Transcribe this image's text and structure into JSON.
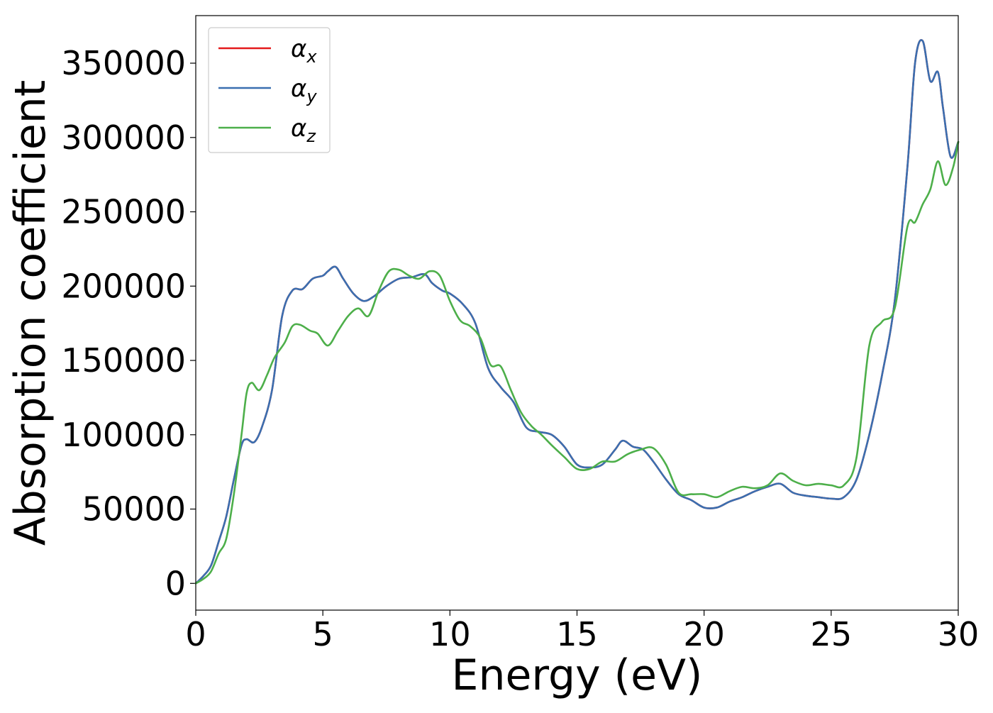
{
  "chart_data": {
    "type": "line",
    "xlabel": "Energy (eV)",
    "ylabel": "Absorption coefficient",
    "xlim": [
      0,
      30
    ],
    "ylim": [
      -18000,
      382000
    ],
    "xticks": [
      0,
      5,
      10,
      15,
      20,
      25,
      30
    ],
    "xtick_labels": [
      "0",
      "5",
      "10",
      "15",
      "20",
      "25",
      "30"
    ],
    "yticks": [
      0,
      50000,
      100000,
      150000,
      200000,
      250000,
      300000,
      350000
    ],
    "ytick_labels": [
      "0",
      "50000",
      "100000",
      "150000",
      "200000",
      "250000",
      "300000",
      "350000"
    ],
    "grid": false,
    "legend_position": "top-left",
    "series": [
      {
        "name": "α_x",
        "legend_symbol": "α",
        "legend_subscript": "x",
        "color": "#e41a1c",
        "x": [
          0,
          0.3,
          0.6,
          0.9,
          1.2,
          1.5,
          1.8,
          2.0,
          2.3,
          2.6,
          3.0,
          3.4,
          3.8,
          4.2,
          4.6,
          5.0,
          5.2,
          5.5,
          5.8,
          6.2,
          6.6,
          7.0,
          7.5,
          8.0,
          8.5,
          9.0,
          9.3,
          9.7,
          10.0,
          10.5,
          11.0,
          11.5,
          12.0,
          12.5,
          13.0,
          13.5,
          14.0,
          14.5,
          15.0,
          15.5,
          16.0,
          16.5,
          16.8,
          17.2,
          17.6,
          18.0,
          18.5,
          19.0,
          19.5,
          20.0,
          20.5,
          21.0,
          21.5,
          22.0,
          22.5,
          23.0,
          23.5,
          24.0,
          24.5,
          25.0,
          25.5,
          26.0,
          26.5,
          27.0,
          27.5,
          28.0,
          28.3,
          28.6,
          28.9,
          29.2,
          29.4,
          29.7,
          30.0
        ],
        "y": [
          0,
          5000,
          12000,
          28000,
          45000,
          70000,
          93000,
          97000,
          95000,
          105000,
          130000,
          180000,
          197000,
          198000,
          205000,
          207000,
          210000,
          213000,
          205000,
          195000,
          190000,
          193000,
          200000,
          205000,
          206000,
          208000,
          202000,
          197000,
          195000,
          188000,
          175000,
          145000,
          132000,
          122000,
          105000,
          102000,
          100000,
          92000,
          80000,
          78000,
          80000,
          90000,
          96000,
          92000,
          90000,
          82000,
          70000,
          60000,
          56000,
          51000,
          51000,
          55000,
          58000,
          62000,
          65000,
          67000,
          61000,
          59000,
          58000,
          57000,
          58000,
          70000,
          100000,
          140000,
          190000,
          280000,
          350000,
          365000,
          338000,
          344000,
          320000,
          287000,
          297000
        ]
      },
      {
        "name": "α_y",
        "legend_symbol": "α",
        "legend_subscript": "y",
        "color": "#3a6fb0",
        "x": [
          0,
          0.3,
          0.6,
          0.9,
          1.2,
          1.5,
          1.8,
          2.0,
          2.3,
          2.6,
          3.0,
          3.4,
          3.8,
          4.2,
          4.6,
          5.0,
          5.2,
          5.5,
          5.8,
          6.2,
          6.6,
          7.0,
          7.5,
          8.0,
          8.5,
          9.0,
          9.3,
          9.7,
          10.0,
          10.5,
          11.0,
          11.5,
          12.0,
          12.5,
          13.0,
          13.5,
          14.0,
          14.5,
          15.0,
          15.5,
          16.0,
          16.5,
          16.8,
          17.2,
          17.6,
          18.0,
          18.5,
          19.0,
          19.5,
          20.0,
          20.5,
          21.0,
          21.5,
          22.0,
          22.5,
          23.0,
          23.5,
          24.0,
          24.5,
          25.0,
          25.5,
          26.0,
          26.5,
          27.0,
          27.5,
          28.0,
          28.3,
          28.6,
          28.9,
          29.2,
          29.4,
          29.7,
          30.0
        ],
        "y": [
          0,
          5000,
          12000,
          28000,
          45000,
          70000,
          93000,
          97000,
          95000,
          105000,
          130000,
          180000,
          197000,
          198000,
          205000,
          207000,
          210000,
          213000,
          205000,
          195000,
          190000,
          193000,
          200000,
          205000,
          206000,
          208000,
          202000,
          197000,
          195000,
          188000,
          175000,
          145000,
          132000,
          122000,
          105000,
          102000,
          100000,
          92000,
          80000,
          78000,
          80000,
          90000,
          96000,
          92000,
          90000,
          82000,
          70000,
          60000,
          56000,
          51000,
          51000,
          55000,
          58000,
          62000,
          65000,
          67000,
          61000,
          59000,
          58000,
          57000,
          58000,
          70000,
          100000,
          140000,
          190000,
          280000,
          350000,
          365000,
          338000,
          344000,
          320000,
          287000,
          297000
        ]
      },
      {
        "name": "α_z",
        "legend_symbol": "α",
        "legend_subscript": "z",
        "color": "#4daf4a",
        "x": [
          0,
          0.3,
          0.6,
          0.9,
          1.2,
          1.5,
          1.8,
          2.0,
          2.2,
          2.5,
          2.8,
          3.1,
          3.5,
          3.8,
          4.1,
          4.5,
          4.8,
          5.2,
          5.6,
          6.0,
          6.4,
          6.8,
          7.2,
          7.6,
          8.0,
          8.4,
          8.8,
          9.2,
          9.6,
          10.0,
          10.4,
          10.8,
          11.2,
          11.6,
          12.0,
          12.4,
          12.8,
          13.2,
          13.6,
          14.0,
          14.5,
          15.0,
          15.5,
          16.0,
          16.5,
          17.0,
          17.5,
          18.0,
          18.5,
          19.0,
          19.5,
          20.0,
          20.5,
          21.0,
          21.5,
          22.0,
          22.5,
          23.0,
          23.5,
          24.0,
          24.5,
          25.0,
          25.5,
          26.0,
          26.5,
          27.0,
          27.5,
          28.0,
          28.3,
          28.6,
          28.9,
          29.2,
          29.5,
          29.8,
          30.0
        ],
        "y": [
          0,
          3000,
          8000,
          20000,
          30000,
          60000,
          100000,
          128000,
          135000,
          130000,
          140000,
          152000,
          162000,
          173000,
          174000,
          170000,
          168000,
          160000,
          170000,
          180000,
          185000,
          180000,
          197000,
          210000,
          211000,
          207000,
          205000,
          210000,
          207000,
          190000,
          177000,
          173000,
          165000,
          147000,
          146000,
          130000,
          115000,
          106000,
          100000,
          93000,
          85000,
          77000,
          77000,
          82000,
          82000,
          87000,
          90000,
          91000,
          80000,
          61000,
          60000,
          60000,
          58000,
          62000,
          65000,
          64000,
          66000,
          74000,
          69000,
          66000,
          67000,
          66000,
          66000,
          85000,
          160000,
          176000,
          185000,
          240000,
          243000,
          255000,
          265000,
          284000,
          268000,
          280000,
          297000
        ]
      }
    ]
  }
}
